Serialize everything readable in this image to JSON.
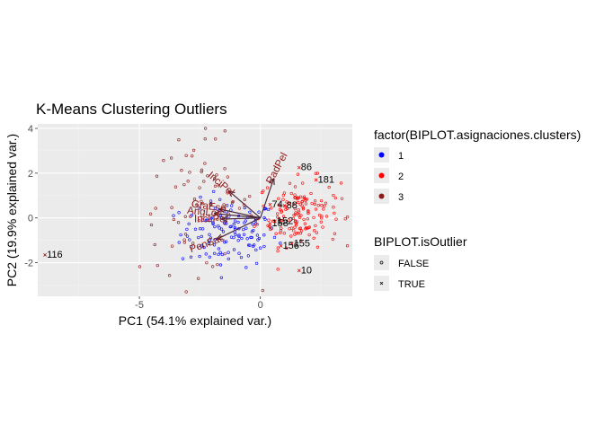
{
  "colors": {
    "panel_bg": "#ebebeb",
    "grid_major": "#ffffff",
    "grid_minor": "#f2f2f2",
    "cluster1": "#0000ff",
    "cluster2": "#ff0000",
    "cluster3": "#8b1a1a",
    "arrow": "#4b2a3a",
    "loading_text": "#8b1a1a"
  },
  "chart_data": {
    "type": "scatter",
    "title": "K-Means Clustering Outliers",
    "xlabel": "PC1 (54.1% explained var.)",
    "ylabel": "PC2 (19.9% explained var.)",
    "xlim": [
      -9.2,
      3.8
    ],
    "ylim": [
      -3.5,
      4.2
    ],
    "xticks": [
      -5,
      0
    ],
    "yticks": [
      -2,
      0,
      2,
      4
    ],
    "grid": true,
    "legend_position": "right",
    "legends": [
      {
        "title": "factor(BIPLOT.asignaciones.clusters)",
        "key": "color",
        "entries": [
          "1",
          "2",
          "3"
        ]
      },
      {
        "title": "BIPLOT.isOutlier",
        "key": "shape",
        "entries": [
          "FALSE",
          "TRUE"
        ]
      }
    ],
    "clusters": [
      {
        "name": "1",
        "center": [
          -1.3,
          -0.7
        ],
        "spread": [
          1.0,
          0.75
        ],
        "count": 130
      },
      {
        "name": "2",
        "center": [
          1.6,
          0.25
        ],
        "spread": [
          0.85,
          0.75
        ],
        "count": 150
      },
      {
        "name": "3",
        "center": [
          -2.6,
          0.6
        ],
        "spread": [
          1.2,
          1.5
        ],
        "count": 70
      }
    ],
    "outliers": [
      {
        "label": "116",
        "x": -8.9,
        "y": -1.65,
        "cluster": "3"
      },
      {
        "label": "86",
        "x": 1.6,
        "y": 2.25,
        "cluster": "2"
      },
      {
        "label": "181",
        "x": 2.3,
        "y": 1.7,
        "cluster": "2"
      },
      {
        "label": "74",
        "x": 0.4,
        "y": 0.6,
        "cluster": "2"
      },
      {
        "label": "88",
        "x": 1.0,
        "y": 0.55,
        "cluster": "2"
      },
      {
        "label": "152",
        "x": 0.6,
        "y": -0.15,
        "cluster": "2"
      },
      {
        "label": "158",
        "x": 0.4,
        "y": -0.25,
        "cluster": "2"
      },
      {
        "label": "155",
        "x": 1.3,
        "y": -1.15,
        "cluster": "2"
      },
      {
        "label": "156",
        "x": 0.85,
        "y": -1.25,
        "cluster": "2"
      },
      {
        "label": "10",
        "x": 1.6,
        "y": -2.35,
        "cluster": "2"
      }
    ],
    "loadings": [
      {
        "label": "RadPel",
        "x": 0.55,
        "y": 1.75,
        "angle": -62
      },
      {
        "label": "InciPel",
        "x": -1.3,
        "y": 1.2,
        "angle": 40
      },
      {
        "label": "GraEsp",
        "x": -1.7,
        "y": 0.4,
        "angle": 8
      },
      {
        "label": "AngLor",
        "x": -1.9,
        "y": 0.2,
        "angle": 6
      },
      {
        "label": "IncliPel",
        "x": -1.6,
        "y": -0.05,
        "angle": 0
      },
      {
        "label": "PenSac",
        "x": -1.8,
        "y": -0.95,
        "angle": -20
      }
    ]
  }
}
